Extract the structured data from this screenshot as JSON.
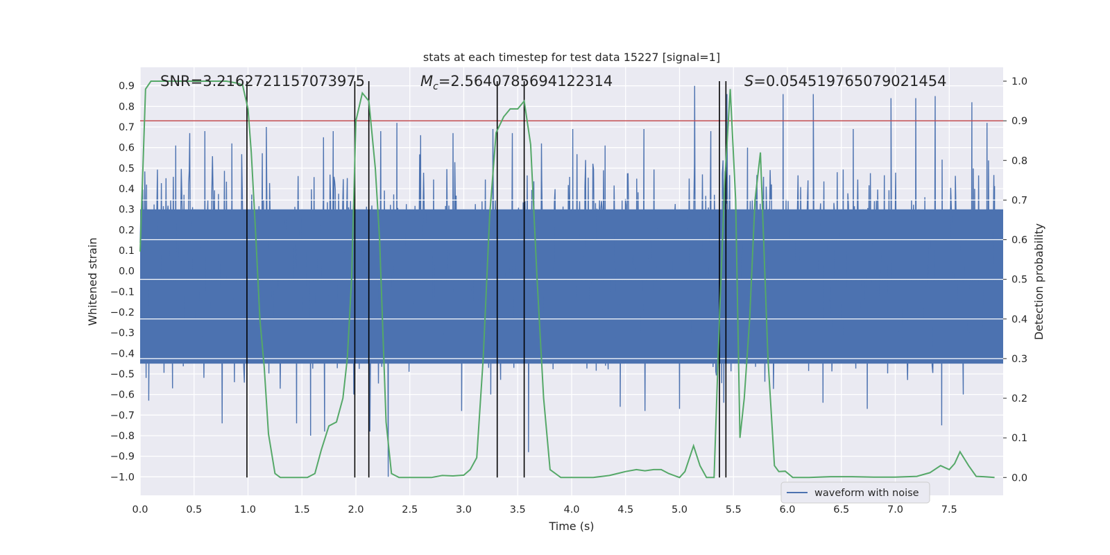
{
  "chart_data": {
    "type": "line",
    "title": "stats at each timestep for test data 15227 [signal=1]",
    "xlabel": "Time (s)",
    "ylabel": "Whitened strain",
    "ylabel_right": "Detection probability",
    "xlim": [
      0.0,
      8.0
    ],
    "ylim": [
      -1.09,
      0.99
    ],
    "ylim_right": [
      -0.045,
      1.035
    ],
    "grid": true,
    "legend_placement": "lower-right",
    "xticks": [
      "0.0",
      "0.5",
      "1.0",
      "1.5",
      "2.0",
      "2.5",
      "3.0",
      "3.5",
      "4.0",
      "4.5",
      "5.0",
      "5.5",
      "6.0",
      "6.5",
      "7.0",
      "7.5"
    ],
    "xtick_values": [
      0.0,
      0.5,
      1.0,
      1.5,
      2.0,
      2.5,
      3.0,
      3.5,
      4.0,
      4.5,
      5.0,
      5.5,
      6.0,
      6.5,
      7.0,
      7.5
    ],
    "yticks": [
      "0.9",
      "0.8",
      "0.7",
      "0.6",
      "0.5",
      "0.4",
      "0.3",
      "0.2",
      "0.1",
      "0.0",
      "−0.1",
      "−0.2",
      "−0.3",
      "−0.4",
      "−0.5",
      "−0.6",
      "−0.7",
      "−0.8",
      "−0.9",
      "−1.0"
    ],
    "ytick_values": [
      0.9,
      0.8,
      0.7,
      0.6,
      0.5,
      0.4,
      0.3,
      0.2,
      0.1,
      0.0,
      -0.1,
      -0.2,
      -0.3,
      -0.4,
      -0.5,
      -0.6,
      -0.7,
      -0.8,
      -0.9,
      -1.0
    ],
    "yticks_right": [
      "1.0",
      "0.9",
      "0.8",
      "0.7",
      "0.6",
      "0.5",
      "0.4",
      "0.3",
      "0.2",
      "0.1",
      "0.0"
    ],
    "ytick_right_values": [
      1.0,
      0.9,
      0.8,
      0.7,
      0.6,
      0.5,
      0.4,
      0.3,
      0.2,
      0.1,
      0.0
    ],
    "annotations": {
      "snr": "SNR=3.2162721157073975",
      "mc_symbol": "M",
      "mc_sub": "c",
      "mc_value": "=2.5640785694122314",
      "s_symbol": "S",
      "s_value": "=0.054519765079021454"
    },
    "waveform": {
      "name": "waveform with noise",
      "color": "#4c72b0",
      "envelope_upper": [
        0.0,
        0.0,
        0.0,
        0.0
      ],
      "noise_peaks_upper": [
        [
          0.06,
          0.42
        ],
        [
          0.33,
          0.61
        ],
        [
          0.46,
          0.67
        ],
        [
          0.6,
          0.68
        ],
        [
          0.85,
          0.62
        ],
        [
          1.17,
          0.7
        ],
        [
          1.7,
          0.65
        ],
        [
          1.79,
          0.68
        ],
        [
          2.23,
          0.68
        ],
        [
          2.38,
          0.72
        ],
        [
          2.6,
          0.66
        ],
        [
          2.9,
          0.67
        ],
        [
          3.27,
          0.69
        ],
        [
          3.45,
          0.67
        ],
        [
          3.72,
          0.62
        ],
        [
          4.01,
          0.69
        ],
        [
          4.31,
          0.61
        ],
        [
          4.67,
          0.69
        ],
        [
          5.14,
          0.9
        ],
        [
          5.29,
          0.68
        ],
        [
          5.44,
          0.86
        ],
        [
          5.63,
          0.6
        ],
        [
          5.96,
          0.86
        ],
        [
          6.24,
          0.86
        ],
        [
          6.61,
          0.69
        ],
        [
          6.96,
          0.84
        ],
        [
          7.19,
          0.84
        ],
        [
          7.37,
          0.85
        ],
        [
          7.71,
          0.82
        ],
        [
          7.85,
          0.72
        ]
      ],
      "noise_peaks_lower": [
        [
          0.08,
          -0.63
        ],
        [
          0.3,
          -0.57
        ],
        [
          0.76,
          -0.74
        ],
        [
          1.45,
          -0.74
        ],
        [
          1.58,
          -0.8
        ],
        [
          1.71,
          -0.78
        ],
        [
          1.98,
          -0.6
        ],
        [
          2.13,
          -0.78
        ],
        [
          2.3,
          -1.0
        ],
        [
          2.98,
          -0.68
        ],
        [
          3.25,
          -0.6
        ],
        [
          3.6,
          -0.88
        ],
        [
          4.45,
          -0.66
        ],
        [
          4.68,
          -0.68
        ],
        [
          5.0,
          -0.67
        ],
        [
          5.41,
          -0.64
        ],
        [
          6.33,
          -0.64
        ],
        [
          6.74,
          -0.67
        ],
        [
          7.43,
          -0.75
        ],
        [
          7.63,
          -0.6
        ]
      ]
    },
    "detection_probability": {
      "color": "#55a868",
      "x": [
        0.0,
        0.05,
        0.1,
        0.16,
        0.22,
        0.28,
        0.34,
        0.4,
        0.5,
        0.6,
        0.7,
        0.8,
        0.9,
        0.95,
        1.0,
        1.03,
        1.07,
        1.11,
        1.15,
        1.19,
        1.25,
        1.3,
        1.35,
        1.42,
        1.55,
        1.62,
        1.68,
        1.75,
        1.82,
        1.88,
        1.92,
        1.96,
        2.0,
        2.06,
        2.12,
        2.18,
        2.22,
        2.28,
        2.33,
        2.4,
        2.5,
        2.7,
        2.8,
        2.9,
        3.0,
        3.06,
        3.12,
        3.18,
        3.24,
        3.3,
        3.37,
        3.43,
        3.5,
        3.56,
        3.62,
        3.68,
        3.74,
        3.8,
        3.9,
        4.0,
        4.2,
        4.35,
        4.5,
        4.6,
        4.68,
        4.76,
        4.83,
        4.9,
        4.95,
        5.0,
        5.05,
        5.13,
        5.19,
        5.25,
        5.32,
        5.37,
        5.42,
        5.47,
        5.52,
        5.56,
        5.6,
        5.65,
        5.7,
        5.75,
        5.82,
        5.88,
        5.92,
        5.98,
        6.05,
        6.2,
        6.4,
        6.6,
        6.8,
        7.0,
        7.2,
        7.32,
        7.42,
        7.5,
        7.55,
        7.6,
        7.68,
        7.75,
        7.82,
        7.92
      ],
      "y": [
        0.57,
        0.98,
        1.0,
        1.0,
        1.0,
        1.0,
        1.0,
        1.0,
        1.0,
        1.0,
        1.0,
        1.0,
        0.995,
        0.99,
        0.93,
        0.82,
        0.62,
        0.4,
        0.28,
        0.11,
        0.01,
        0.0,
        0.0,
        0.0,
        0.0,
        0.01,
        0.07,
        0.13,
        0.14,
        0.2,
        0.3,
        0.5,
        0.9,
        0.97,
        0.95,
        0.78,
        0.6,
        0.14,
        0.01,
        0.0,
        0.0,
        0.0,
        0.005,
        0.004,
        0.006,
        0.02,
        0.05,
        0.3,
        0.66,
        0.87,
        0.91,
        0.93,
        0.93,
        0.95,
        0.84,
        0.5,
        0.2,
        0.02,
        0.0,
        0.0,
        0.0,
        0.005,
        0.015,
        0.02,
        0.017,
        0.02,
        0.02,
        0.01,
        0.005,
        0.0,
        0.015,
        0.08,
        0.03,
        0.0,
        0.0,
        0.4,
        0.75,
        0.98,
        0.7,
        0.1,
        0.2,
        0.4,
        0.7,
        0.82,
        0.3,
        0.03,
        0.015,
        0.016,
        0.0,
        0.0,
        0.002,
        0.002,
        0.001,
        0.001,
        0.003,
        0.012,
        0.03,
        0.02,
        0.035,
        0.065,
        0.03,
        0.003,
        0.002,
        0.0
      ]
    },
    "threshold": {
      "value": 0.9,
      "color": "#c44e52"
    },
    "vertical_lines": [
      0.99,
      1.99,
      2.12,
      3.31,
      3.56,
      5.37,
      5.43
    ],
    "vertical_line_ymax": 1.0,
    "vertical_line_ymin": 0.0,
    "white_lines_right": [
      0.7,
      0.6,
      0.5,
      0.4,
      0.3
    ],
    "colors": {
      "background": "#eaeaf2",
      "grid": "#ffffff",
      "vline": "#000000"
    }
  }
}
